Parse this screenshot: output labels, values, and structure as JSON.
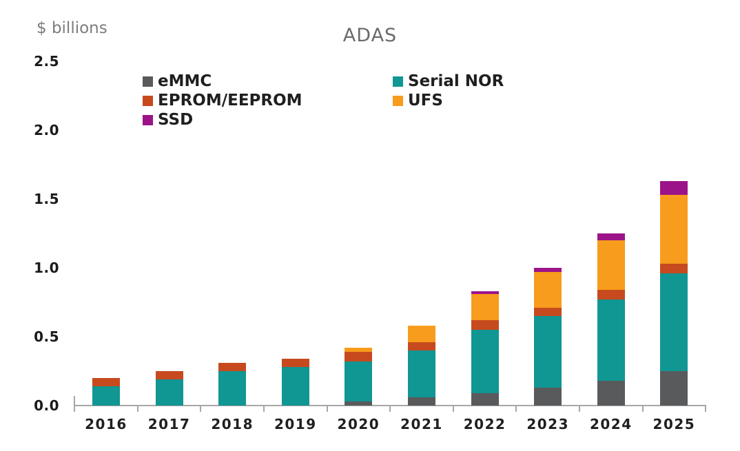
{
  "chart_data": {
    "type": "bar",
    "stacked": true,
    "title": "ADAS",
    "ylabel": "$ billions",
    "categories": [
      "2016",
      "2017",
      "2018",
      "2019",
      "2020",
      "2021",
      "2022",
      "2023",
      "2024",
      "2025"
    ],
    "series": [
      {
        "name": "eMMC",
        "color": "#595a5c",
        "values": [
          0,
          0,
          0,
          0,
          0.03,
          0.06,
          0.09,
          0.13,
          0.18,
          0.25
        ]
      },
      {
        "name": "Serial NOR",
        "color": "#109693",
        "values": [
          0.14,
          0.19,
          0.25,
          0.28,
          0.29,
          0.34,
          0.46,
          0.52,
          0.59,
          0.71
        ]
      },
      {
        "name": "EPROM/EEPROM",
        "color": "#c64a1e",
        "values": [
          0.06,
          0.06,
          0.06,
          0.06,
          0.07,
          0.06,
          0.07,
          0.06,
          0.07,
          0.07
        ]
      },
      {
        "name": "UFS",
        "color": "#f79c1c",
        "values": [
          0,
          0,
          0,
          0,
          0.03,
          0.12,
          0.19,
          0.26,
          0.36,
          0.5
        ]
      },
      {
        "name": "SSD",
        "color": "#9c1389",
        "values": [
          0,
          0,
          0,
          0,
          0,
          0,
          0.02,
          0.03,
          0.05,
          0.1
        ]
      }
    ],
    "totals": [
      0.2,
      0.25,
      0.31,
      0.34,
      0.42,
      0.58,
      0.83,
      1.0,
      1.25,
      1.63
    ],
    "y_ticks": [
      {
        "label": "0.0",
        "value": 0
      },
      {
        "label": "0.5",
        "value": 0.5
      },
      {
        "label": "1.0",
        "value": 1
      },
      {
        "label": "1.5",
        "value": 1.5
      },
      {
        "label": "2.0",
        "value": 2
      },
      {
        "label": "2.5",
        "value": 2.5
      }
    ],
    "ylim": [
      0,
      2.5
    ],
    "grid": false,
    "legend_position": "top-center-inside-two-columns",
    "legend_columns": [
      [
        "eMMC",
        "EPROM/EEPROM",
        "SSD"
      ],
      [
        "Serial NOR",
        "UFS"
      ]
    ],
    "axis_color": "#a6a6a6",
    "tick_label_color": "#1f1f1f",
    "title_color": "#6a6a6a"
  }
}
